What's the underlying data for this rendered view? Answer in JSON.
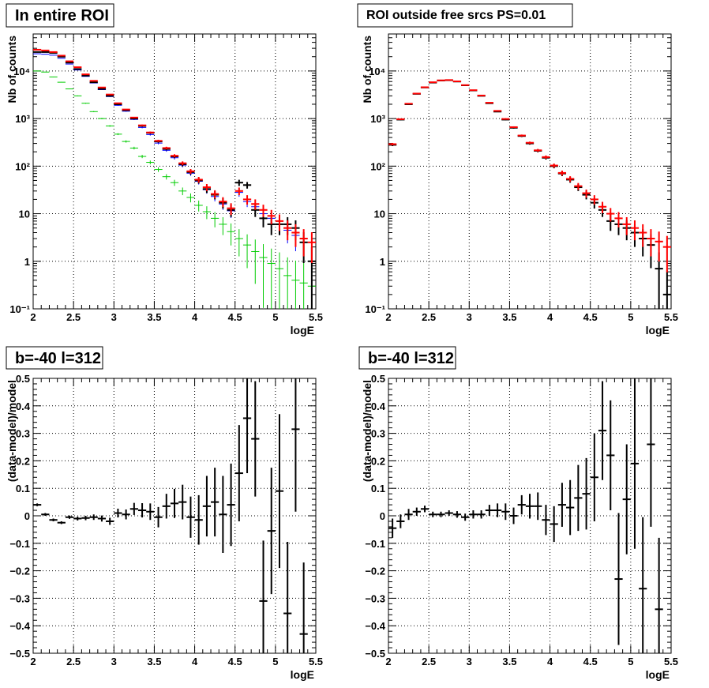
{
  "colors": {
    "data": "#000000",
    "model": "#ff0000",
    "blue": "#0000ff",
    "green": "#00cc00"
  },
  "chart_data": [
    {
      "type": "line",
      "title": "In entire ROI",
      "xlabel": "logE",
      "ylabel": "Nb of counts",
      "xlim": [
        2,
        5.5
      ],
      "ylim": [
        0.1,
        60000
      ],
      "log_y": true,
      "grid": true,
      "x_ticks": [
        "2",
        "2.5",
        "3",
        "3.5",
        "4",
        "4.5",
        "5",
        "5.5"
      ],
      "y_ticks": [
        "10⁻¹",
        "1",
        "10",
        "10²",
        "10³",
        "10⁴"
      ],
      "x": [
        2.05,
        2.15,
        2.25,
        2.35,
        2.45,
        2.55,
        2.65,
        2.75,
        2.85,
        2.95,
        3.05,
        3.15,
        3.25,
        3.35,
        3.45,
        3.55,
        3.65,
        3.75,
        3.85,
        3.95,
        4.05,
        4.15,
        4.25,
        4.35,
        4.45,
        4.55,
        4.65,
        4.75,
        4.85,
        4.95,
        5.05,
        5.15,
        5.25,
        5.35,
        5.45
      ],
      "series": [
        {
          "color": "black",
          "values": [
            25000,
            25000,
            24000,
            20000,
            15000,
            11000,
            8000,
            5800,
            4200,
            3000,
            2000,
            1500,
            1000,
            700,
            500,
            330,
            230,
            160,
            110,
            75,
            50,
            33,
            25,
            17,
            12,
            45,
            40,
            12,
            8,
            6,
            6,
            6,
            5,
            2.5,
            1
          ]
        },
        {
          "color": "red",
          "values": [
            28000,
            27000,
            25000,
            21000,
            16000,
            12000,
            8500,
            6200,
            4500,
            3200,
            2100,
            1550,
            1050,
            720,
            510,
            340,
            240,
            165,
            115,
            78,
            52,
            36,
            26,
            18,
            13,
            30,
            20,
            16,
            12,
            9,
            7,
            5,
            4,
            3,
            2.5
          ]
        },
        {
          "color": "blue",
          "values": [
            23000,
            22500,
            21500,
            18500,
            14000,
            10500,
            7700,
            5600,
            4050,
            2900,
            1900,
            1430,
            960,
            650,
            460,
            305,
            215,
            150,
            105,
            71,
            48,
            32,
            23,
            16,
            11.5,
            28,
            18,
            14,
            10,
            8,
            6,
            4.5,
            3.5,
            2.5,
            1
          ]
        },
        {
          "color": "green",
          "values": [
            10000,
            9500,
            7500,
            5800,
            4200,
            3000,
            2100,
            1400,
            1000,
            700,
            470,
            330,
            240,
            160,
            120,
            85,
            60,
            45,
            30,
            22,
            15,
            11,
            8,
            6,
            4.2,
            3,
            2.2,
            1.6,
            1.2,
            0.9,
            0.7,
            0.5,
            0.4,
            0.35,
            0.3
          ]
        }
      ]
    },
    {
      "type": "line",
      "title": "ROI outside free srcs PS=0.01",
      "xlabel": "logE",
      "ylabel": "Nb of counts",
      "xlim": [
        2,
        5.5
      ],
      "ylim": [
        0.1,
        60000
      ],
      "log_y": true,
      "grid": true,
      "x_ticks": [
        "2",
        "2.5",
        "3",
        "3.5",
        "4",
        "4.5",
        "5",
        "5.5"
      ],
      "y_ticks": [
        "10⁻¹",
        "1",
        "10",
        "10²",
        "10³",
        "10⁴"
      ],
      "x": [
        2.05,
        2.15,
        2.25,
        2.35,
        2.45,
        2.55,
        2.65,
        2.75,
        2.85,
        2.95,
        3.05,
        3.15,
        3.25,
        3.35,
        3.45,
        3.55,
        3.65,
        3.75,
        3.85,
        3.95,
        4.05,
        4.15,
        4.25,
        4.35,
        4.45,
        4.55,
        4.65,
        4.75,
        4.85,
        4.95,
        5.05,
        5.15,
        5.25,
        5.35,
        5.45
      ],
      "series": [
        {
          "color": "black",
          "values": [
            280,
            950,
            2000,
            3300,
            4500,
            5700,
            6300,
            6400,
            6000,
            5000,
            3900,
            3000,
            2100,
            1400,
            950,
            640,
            430,
            300,
            210,
            150,
            100,
            70,
            52,
            36,
            25,
            17,
            12,
            7,
            6,
            5,
            4,
            3,
            2.2,
            0.7,
            0.2
          ]
        },
        {
          "color": "red",
          "values": [
            290,
            970,
            2050,
            3350,
            4550,
            5800,
            6350,
            6450,
            6050,
            5050,
            3950,
            3050,
            2150,
            1450,
            980,
            660,
            440,
            310,
            215,
            155,
            103,
            72,
            54,
            38,
            27,
            20,
            14,
            10,
            8,
            6,
            5,
            4,
            3,
            2.6,
            2
          ]
        }
      ]
    },
    {
      "type": "scatter",
      "title": "b=-40 l=312",
      "xlabel": "logE",
      "ylabel": "(data-model)/model",
      "xlim": [
        2,
        5.5
      ],
      "ylim": [
        -0.5,
        0.5
      ],
      "grid": true,
      "x_ticks": [
        "2",
        "2.5",
        "3",
        "3.5",
        "4",
        "4.5",
        "5",
        "5.5"
      ],
      "y_ticks": [
        "−0.5",
        "−0.4",
        "−0.3",
        "−0.2",
        "−0.1",
        "0",
        "0.1",
        "0.2",
        "0.3",
        "0.4",
        "0.5"
      ],
      "x": [
        2.05,
        2.15,
        2.25,
        2.35,
        2.45,
        2.55,
        2.65,
        2.75,
        2.85,
        2.95,
        3.05,
        3.15,
        3.25,
        3.35,
        3.45,
        3.55,
        3.65,
        3.75,
        3.85,
        3.95,
        4.05,
        4.15,
        4.25,
        4.35,
        4.45,
        4.55,
        4.65,
        4.75,
        4.85,
        4.95,
        5.05,
        5.15,
        5.25,
        5.35
      ],
      "values": [
        0.04,
        0.005,
        -0.015,
        -0.025,
        -0.005,
        -0.01,
        -0.008,
        -0.005,
        -0.01,
        -0.02,
        0.01,
        0.005,
        0.025,
        0.02,
        0.015,
        -0.005,
        0.035,
        0.045,
        0.05,
        -0.005,
        -0.015,
        0.035,
        0.05,
        0.005,
        0.04,
        0.155,
        0.355,
        0.28,
        -0.31,
        -0.055,
        0.09,
        -0.355,
        0.315,
        -0.43
      ],
      "errors": [
        0.005,
        0.005,
        0.005,
        0.005,
        0.006,
        0.007,
        0.008,
        0.01,
        0.011,
        0.013,
        0.016,
        0.018,
        0.022,
        0.026,
        0.03,
        0.037,
        0.045,
        0.053,
        0.063,
        0.075,
        0.09,
        0.11,
        0.125,
        0.14,
        0.15,
        0.175,
        0.2,
        0.21,
        0.22,
        0.23,
        0.28,
        0.26,
        0.3,
        0.26
      ]
    },
    {
      "type": "scatter",
      "title": "b=-40 l=312",
      "xlabel": "logE",
      "ylabel": "(data-model)/model",
      "xlim": [
        2,
        5.5
      ],
      "ylim": [
        -0.5,
        0.5
      ],
      "grid": true,
      "x_ticks": [
        "2",
        "2.5",
        "3",
        "3.5",
        "4",
        "4.5",
        "5",
        "5.5"
      ],
      "y_ticks": [
        "−0.5",
        "−0.4",
        "−0.3",
        "−0.2",
        "−0.1",
        "0",
        "0.1",
        "0.2",
        "0.3",
        "0.4",
        "0.5"
      ],
      "x": [
        2.05,
        2.15,
        2.25,
        2.35,
        2.45,
        2.55,
        2.65,
        2.75,
        2.85,
        2.95,
        3.05,
        3.15,
        3.25,
        3.35,
        3.45,
        3.55,
        3.65,
        3.75,
        3.85,
        3.95,
        4.05,
        4.15,
        4.25,
        4.35,
        4.45,
        4.55,
        4.65,
        4.75,
        4.85,
        4.95,
        5.05,
        5.15,
        5.25,
        5.35
      ],
      "values": [
        -0.045,
        -0.02,
        0.005,
        0.015,
        0.025,
        0.005,
        0.005,
        0.01,
        0.005,
        -0.005,
        0.005,
        0.005,
        0.02,
        0.02,
        0.015,
        0.0,
        0.04,
        0.035,
        0.035,
        -0.015,
        -0.03,
        0.04,
        0.03,
        0.065,
        0.08,
        0.14,
        0.31,
        0.22,
        -0.23,
        0.06,
        0.19,
        -0.265,
        0.26,
        -0.34
      ],
      "errors": [
        0.035,
        0.025,
        0.02,
        0.015,
        0.012,
        0.01,
        0.01,
        0.01,
        0.012,
        0.013,
        0.015,
        0.015,
        0.02,
        0.025,
        0.03,
        0.03,
        0.035,
        0.045,
        0.05,
        0.055,
        0.065,
        0.08,
        0.1,
        0.12,
        0.13,
        0.16,
        0.18,
        0.2,
        0.24,
        0.2,
        0.31,
        0.26,
        0.3,
        0.26
      ]
    }
  ]
}
